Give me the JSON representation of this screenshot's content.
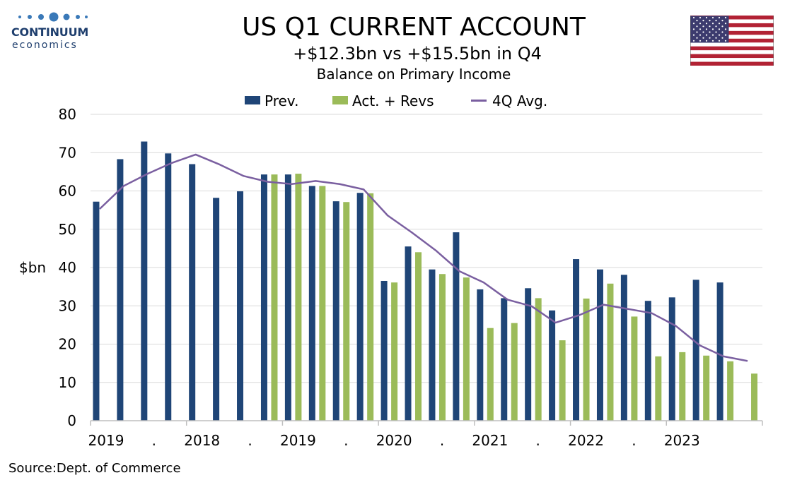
{
  "logo": {
    "name": "CONTINUUM",
    "sub": "economics"
  },
  "flag_icon": "us-flag-icon",
  "colors": {
    "prev": "#1f4577",
    "act": "#9bbb59",
    "avg": "#7a5fa0",
    "grid": "#d9d9d9",
    "axis": "#bfbfbf"
  },
  "chart_data": {
    "type": "bar",
    "title": "US Q1 CURRENT ACCOUNT",
    "subtitle": "+$12.3bn vs +$15.5bn in Q4",
    "subtitle2": "Balance on Primary Income",
    "ylabel": "$bn",
    "ylim": [
      0,
      80
    ],
    "yticks": [
      0,
      10,
      20,
      30,
      40,
      50,
      60,
      70,
      80
    ],
    "xtick_labels": [
      "2019",
      ".",
      "2018",
      ".",
      "2019",
      ".",
      "2020",
      ".",
      "2021",
      ".",
      "2022",
      ".",
      "2023"
    ],
    "grid": true,
    "legend_position": "top",
    "series": [
      {
        "name": "Prev.",
        "kind": "bar",
        "values": [
          57.2,
          68.3,
          72.9,
          69.8,
          67.0,
          58.2,
          59.9,
          64.3,
          64.3,
          61.3,
          57.3,
          59.5,
          36.5,
          45.5,
          39.5,
          49.2,
          34.3,
          32.0,
          34.6,
          28.8,
          42.2,
          39.5,
          38.1,
          31.3,
          32.2,
          36.8,
          36.1,
          null
        ]
      },
      {
        "name": "Act. + Revs",
        "kind": "bar",
        "values": [
          null,
          null,
          null,
          null,
          null,
          null,
          null,
          64.3,
          64.5,
          61.3,
          57.1,
          59.4,
          36.1,
          44.0,
          38.3,
          37.4,
          24.2,
          25.5,
          32.0,
          21.0,
          31.9,
          35.8,
          27.2,
          16.8,
          17.9,
          17.0,
          15.5,
          12.3
        ]
      },
      {
        "name": "4Q Avg.",
        "kind": "line",
        "values": [
          55.3,
          61.3,
          64.5,
          67.3,
          69.5,
          66.9,
          63.9,
          62.4,
          61.8,
          62.6,
          61.8,
          60.4,
          53.6,
          49.2,
          44.5,
          39.0,
          36.1,
          31.6,
          29.9,
          25.6,
          27.6,
          30.3,
          29.2,
          28.1,
          24.8,
          19.7,
          16.8,
          15.6
        ]
      }
    ]
  },
  "source": {
    "label": "Source:",
    "text": "Dept. of Commerce"
  }
}
